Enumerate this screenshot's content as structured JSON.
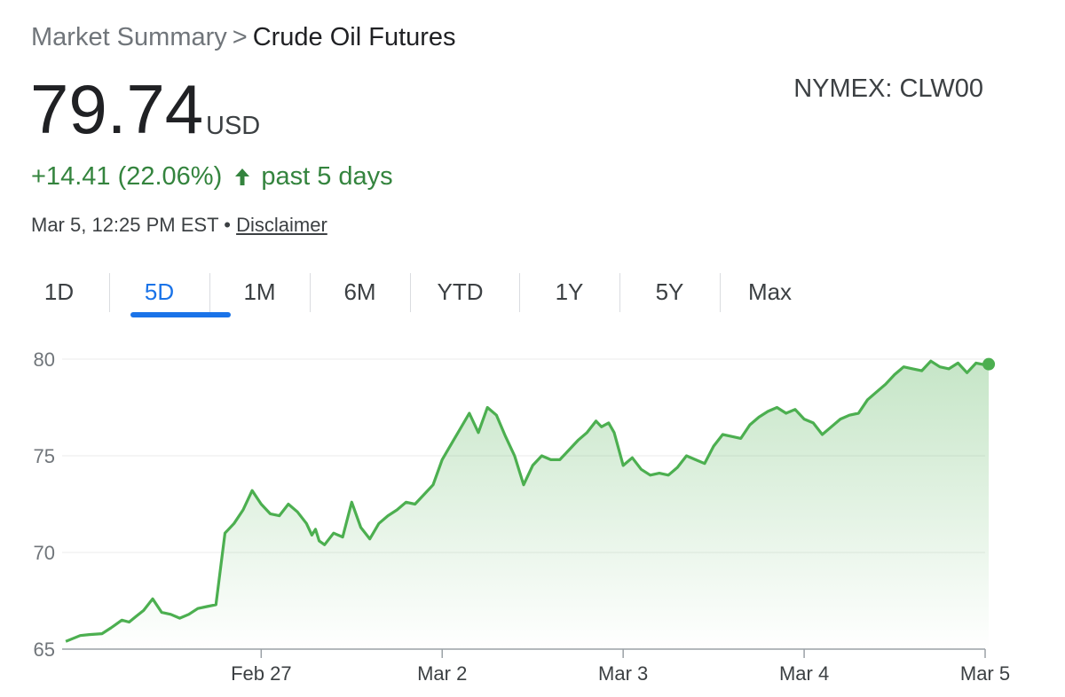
{
  "breadcrumb": {
    "parent": "Market Summary",
    "separator": ">",
    "current": "Crude Oil Futures"
  },
  "ticker": "NYMEX: CLW00",
  "price": "79.74",
  "currency": "USD",
  "change": {
    "text": "+14.41 (22.06%)",
    "period": "past 5 days",
    "direction_icon": "arrow-up-icon"
  },
  "meta": {
    "timestamp": "Mar 5, 12:25 PM EST",
    "bullet": "•",
    "disclaimer": "Disclaimer"
  },
  "tabs": [
    {
      "label": "1D",
      "active": false
    },
    {
      "label": "5D",
      "active": true
    },
    {
      "label": "1M",
      "active": false
    },
    {
      "label": "6M",
      "active": false
    },
    {
      "label": "YTD",
      "active": false
    },
    {
      "label": "1Y",
      "active": false
    },
    {
      "label": "5Y",
      "active": false
    },
    {
      "label": "Max",
      "active": false
    }
  ],
  "colors": {
    "line": "#4caf50",
    "accent": "#1a73e8",
    "positive": "#34843e"
  },
  "chart_data": {
    "type": "area",
    "ylim": [
      65,
      80
    ],
    "yticks": [
      65,
      70,
      75,
      80
    ],
    "xlim": [
      -1.1,
      4.0
    ],
    "xticks": [
      {
        "value": 0,
        "label": "Feb 27"
      },
      {
        "value": 1,
        "label": "Mar 2"
      },
      {
        "value": 2,
        "label": "Mar 3"
      },
      {
        "value": 3,
        "label": "Mar 4"
      },
      {
        "value": 4,
        "label": "Mar 5"
      }
    ],
    "grid": true,
    "series": [
      {
        "x": [
          -1.08,
          -1.0,
          -0.95,
          -0.88,
          -0.83,
          -0.8,
          -0.77,
          -0.73,
          -0.69,
          -0.65,
          -0.6,
          -0.55,
          -0.5,
          -0.45,
          -0.4,
          -0.35,
          -0.3,
          -0.25,
          -0.2,
          -0.15,
          -0.1,
          -0.05,
          0,
          0.05,
          0.1,
          0.15,
          0.2,
          0.25,
          0.28,
          0.3,
          0.32,
          0.35,
          0.4,
          0.45,
          0.5,
          0.55,
          0.6,
          0.65,
          0.7,
          0.75,
          0.8,
          0.85,
          0.9,
          0.95,
          1.0,
          1.05,
          1.1,
          1.15,
          1.2,
          1.25,
          1.3,
          1.35,
          1.4,
          1.45,
          1.5,
          1.55,
          1.6,
          1.65,
          1.7,
          1.75,
          1.8,
          1.85,
          1.88,
          1.92,
          1.95,
          2.0,
          2.05,
          2.1,
          2.15,
          2.2,
          2.25,
          2.3,
          2.35,
          2.4,
          2.45,
          2.5,
          2.55,
          2.6,
          2.65,
          2.7,
          2.75,
          2.8,
          2.85,
          2.9,
          2.95,
          3.0,
          3.05,
          3.1,
          3.15,
          3.2,
          3.25,
          3.3,
          3.35,
          3.4,
          3.45,
          3.5,
          3.55,
          3.6,
          3.65,
          3.7,
          3.75,
          3.8,
          3.85,
          3.9,
          3.95,
          4.0,
          4.02
        ],
        "y": [
          65.4,
          65.7,
          65.75,
          65.8,
          66.1,
          66.3,
          66.5,
          66.4,
          66.7,
          67.0,
          67.6,
          66.9,
          66.8,
          66.6,
          66.8,
          67.1,
          67.2,
          67.3,
          71.0,
          71.5,
          72.2,
          73.2,
          72.5,
          72.0,
          71.9,
          72.5,
          72.1,
          71.5,
          70.9,
          71.2,
          70.6,
          70.4,
          71.0,
          70.8,
          72.6,
          71.3,
          70.7,
          71.5,
          71.9,
          72.2,
          72.6,
          72.5,
          73.0,
          73.5,
          74.8,
          75.6,
          76.4,
          77.2,
          76.2,
          77.5,
          77.1,
          76.0,
          75.0,
          73.5,
          74.5,
          75.0,
          74.8,
          74.8,
          75.3,
          75.8,
          76.2,
          76.8,
          76.5,
          76.7,
          76.2,
          74.5,
          74.9,
          74.3,
          74.0,
          74.1,
          74.0,
          74.4,
          75.0,
          74.8,
          74.6,
          75.5,
          76.1,
          76.0,
          75.9,
          76.6,
          77.0,
          77.3,
          77.5,
          77.2,
          77.4,
          76.9,
          76.7,
          76.1,
          76.5,
          76.9,
          77.1,
          77.2,
          77.9,
          78.3,
          78.7,
          79.2,
          79.6,
          79.5,
          79.4,
          79.9,
          79.6,
          79.5,
          79.8,
          79.3,
          79.8,
          79.7,
          79.74
        ]
      }
    ],
    "last_point_marker": true
  }
}
